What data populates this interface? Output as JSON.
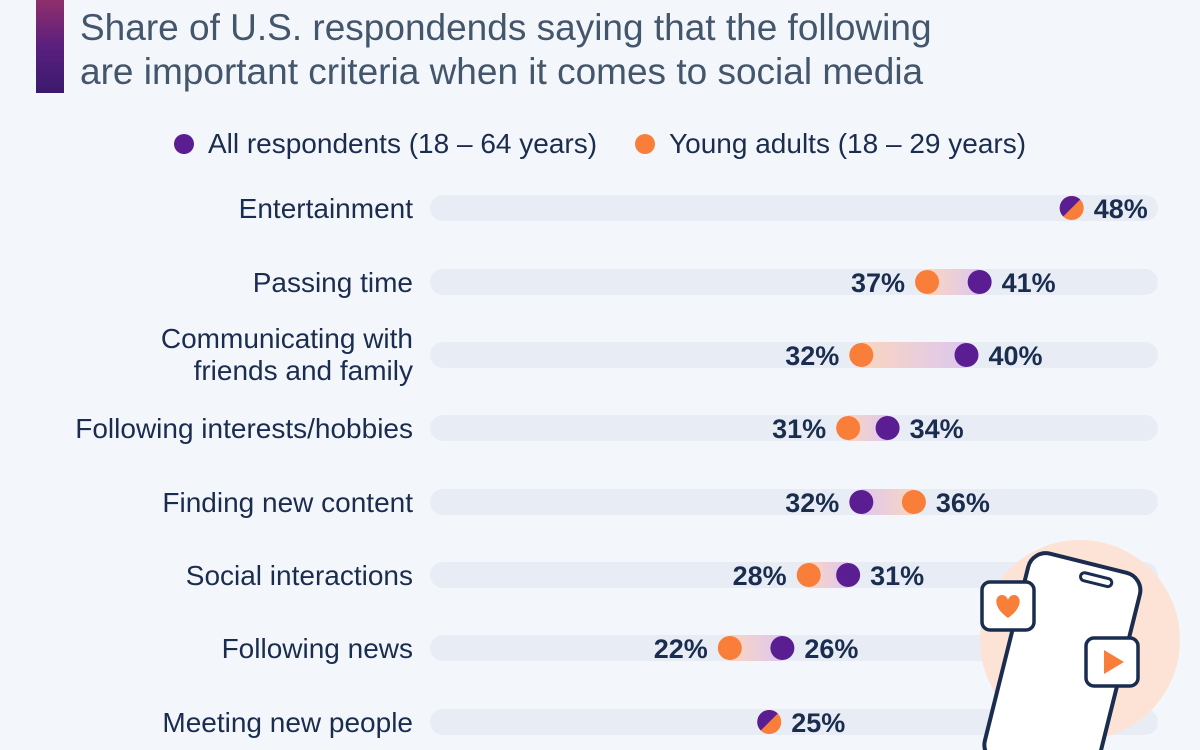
{
  "title": {
    "line1": "Share of U.S. respondends saying that the following",
    "line2": "are important criteria when it comes to social media"
  },
  "colors": {
    "all_respondents": "#5a1e92",
    "young_adults": "#f97e3a",
    "track": "#e8edf5",
    "label_text": "#1b2d4f"
  },
  "illustration": {
    "icons": [
      "phone-icon",
      "heart-icon",
      "play-icon"
    ]
  },
  "chart_data": {
    "type": "dumbbell",
    "ylabel": "",
    "xlabel": "",
    "xlim": [
      0,
      55
    ],
    "grid": false,
    "legend_position": "top-center",
    "categories": [
      "Entertainment",
      "Passing time",
      "Communicating with friends and family",
      "Following interests/hobbies",
      "Finding new content",
      "Social interactions",
      "Following news",
      "Meeting new people"
    ],
    "series": [
      {
        "name": "All respondents (18 – 64 years)",
        "values": [
          48,
          41,
          40,
          34,
          32,
          31,
          26,
          25
        ]
      },
      {
        "name": "Young adults (18 – 29 years)",
        "values": [
          48,
          37,
          32,
          31,
          36,
          28,
          22,
          25
        ]
      }
    ],
    "value_suffix": "%"
  }
}
